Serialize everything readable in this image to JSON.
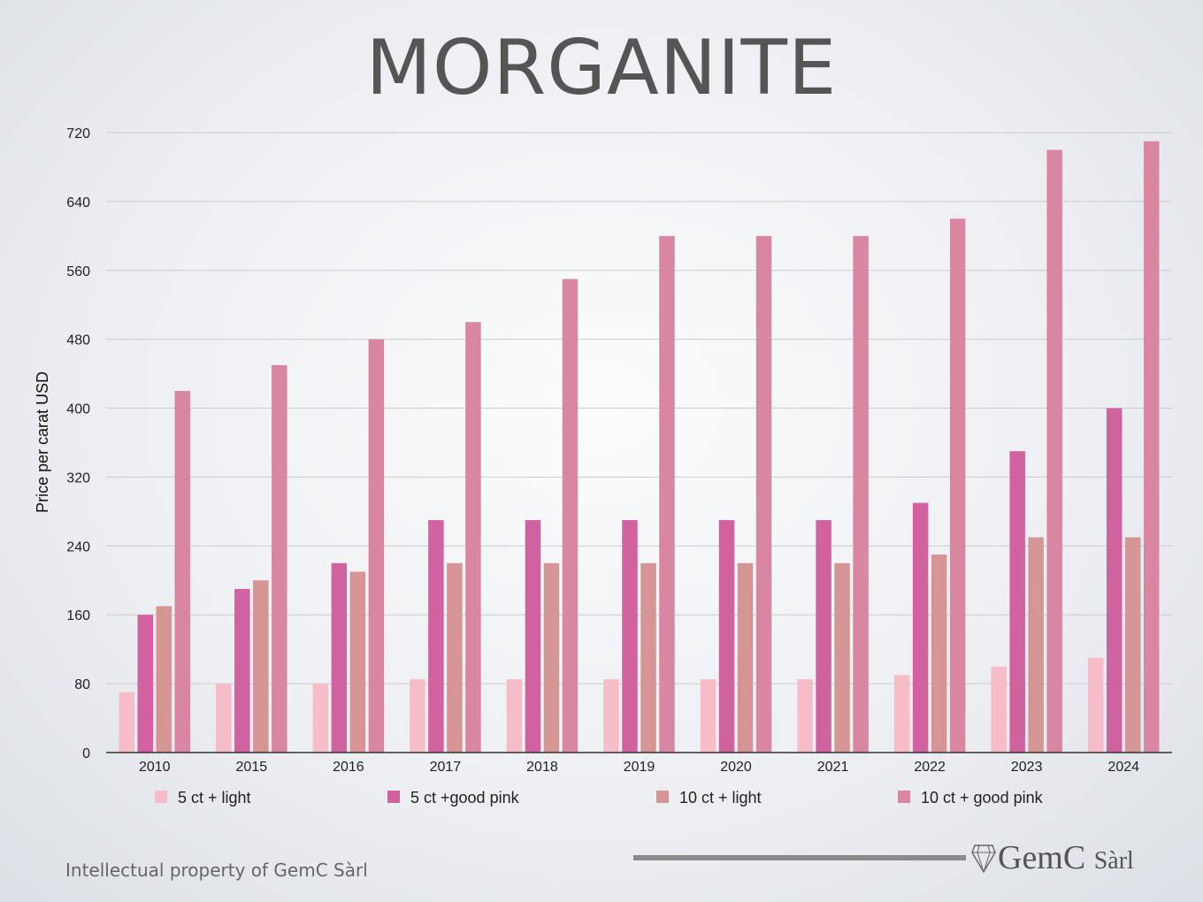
{
  "page": {
    "footer_text": "Intellectual property of GemC Sàrl",
    "logo_main": "GemC",
    "logo_suffix": "Sàrl",
    "logo_icon": "diamond-icon"
  },
  "chart_data": {
    "type": "bar",
    "title": "MORGANITE",
    "xlabel": "",
    "ylabel": "Price per carat USD",
    "ylim": [
      0,
      720
    ],
    "yticks": [
      0,
      80,
      160,
      240,
      320,
      400,
      480,
      560,
      640,
      720
    ],
    "grid": true,
    "legend": "bottom",
    "categories": [
      "2010",
      "2015",
      "2016",
      "2017",
      "2018",
      "2019",
      "2020",
      "2021",
      "2022",
      "2023",
      "2024"
    ],
    "series": [
      {
        "name": "5 ct + light",
        "color": "#f6bcc8",
        "values": [
          70,
          80,
          80,
          85,
          85,
          85,
          85,
          85,
          90,
          100,
          110
        ]
      },
      {
        "name": "5 ct +good pink",
        "color": "#d0629f",
        "values": [
          160,
          190,
          220,
          270,
          270,
          270,
          270,
          270,
          290,
          350,
          400
        ]
      },
      {
        "name": "10 ct + light",
        "color": "#d69595",
        "values": [
          170,
          200,
          210,
          220,
          220,
          220,
          220,
          220,
          230,
          250,
          250
        ]
      },
      {
        "name": "10 ct + good pink",
        "color": "#d986a2",
        "values": [
          420,
          450,
          480,
          500,
          550,
          600,
          600,
          600,
          620,
          700,
          710
        ]
      }
    ]
  }
}
